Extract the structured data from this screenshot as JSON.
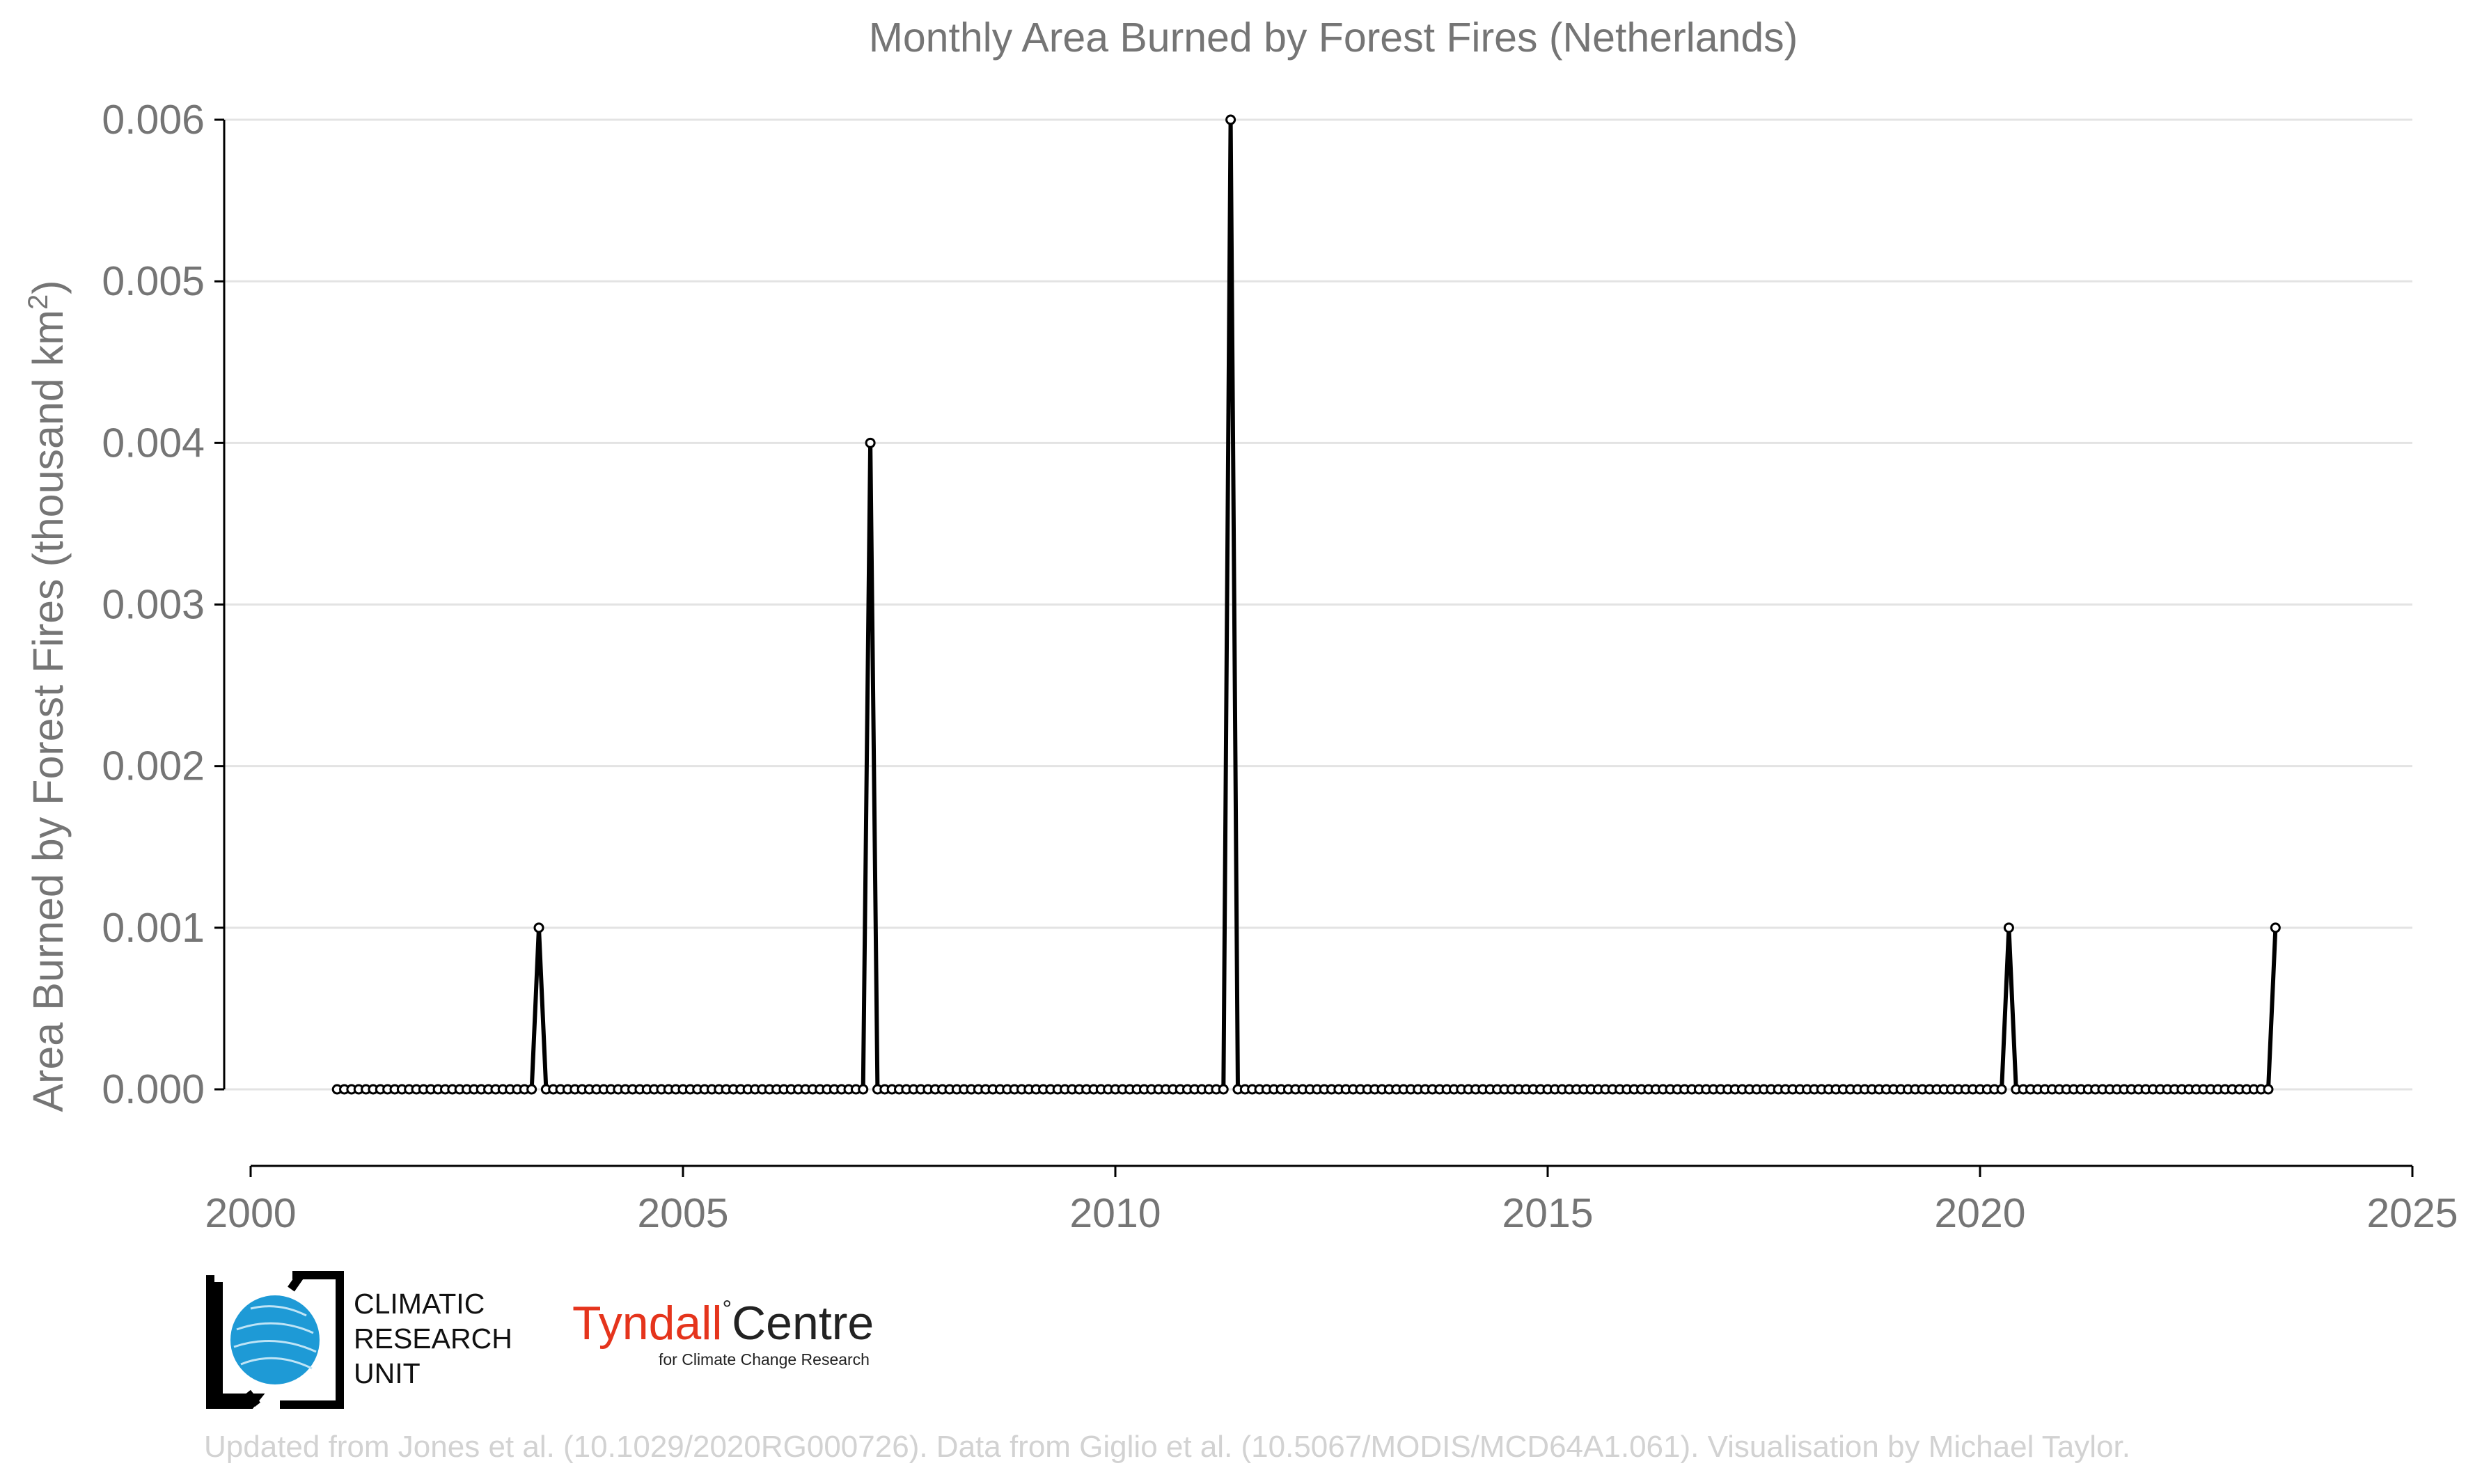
{
  "chart_data": {
    "type": "line",
    "title": "Monthly Area Burned by Forest Fires (Netherlands)",
    "xlabel": "",
    "ylabel": "Area Burned by Forest Fires (thousand km",
    "ylabel_sup": "2",
    "ylabel_tail": ")",
    "xlim": [
      2000,
      2025
    ],
    "ylim": [
      0,
      0.006
    ],
    "x_ticks": [
      "2000",
      "2005",
      "2010",
      "2015",
      "2020",
      "2025"
    ],
    "y_ticks": [
      "0.000",
      "0.001",
      "0.002",
      "0.003",
      "0.004",
      "0.005",
      "0.006"
    ],
    "grid": "horizontal",
    "x_start": "2001-01",
    "x_end": "2023-06",
    "x_step": "1 month",
    "series": [
      {
        "x": [
          "2001-01",
          "2023-06"
        ],
        "values_default": 0,
        "nonzero": [
          {
            "x": "2003-05",
            "y": 0.001
          },
          {
            "x": "2007-03",
            "y": 0.004
          },
          {
            "x": "2011-05",
            "y": 0.006
          },
          {
            "x": "2020-05",
            "y": 0.001
          },
          {
            "x": "2023-06",
            "y": 0.001
          }
        ]
      }
    ]
  },
  "logos": {
    "cru": "CLIMATIC RESEARCH UNIT",
    "cru_lines": [
      "CLIMATIC",
      "RESEARCH",
      "UNIT"
    ],
    "tyndall_main_1": "Tyndall",
    "tyndall_degree": "°",
    "tyndall_main_2": "Centre",
    "tyndall_sub": "for Climate Change Research"
  },
  "footer": "Updated from Jones et al. (10.1029/2020RG000726). Data from Giglio et al. (10.5067/MODIS/MCD64A1.061). Visualisation by Michael Taylor."
}
